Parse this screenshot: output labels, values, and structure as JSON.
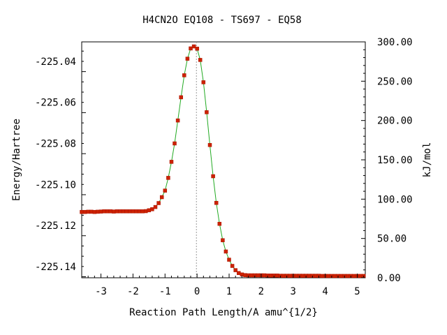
{
  "chart_data": {
    "type": "line",
    "title": "H4CN2O   EQ108 - TS697 - EQ58",
    "xlabel": "Reaction Path Length/A amu^{1/2}",
    "ylabel": "Energy/Hartree",
    "y2label": "kJ/mol",
    "xlim": [
      -3.6,
      5.25
    ],
    "ylim": [
      -225.1455,
      -225.0305
    ],
    "y2lim": [
      0,
      300
    ],
    "x_ticks": [
      "-3",
      "-2",
      "-1",
      "0",
      "1",
      "2",
      "3",
      "4",
      "5"
    ],
    "y_ticks": [
      "-225.04",
      "-225.06",
      "-225.08",
      "-225.10",
      "-225.12",
      "-225.14"
    ],
    "y2_ticks": [
      "0.00",
      "50.00",
      "100.00",
      "150.00",
      "200.00",
      "250.00",
      "300.00"
    ],
    "grid": false,
    "ts_line_x": -0.02,
    "colors": {
      "curve": "#22aa22",
      "points": "#cc2200",
      "ts_line": "#999999",
      "axes": "#000000"
    },
    "series": [
      {
        "x": [
          -3.6,
          -3.5,
          -3.4,
          -3.3,
          -3.2,
          -3.1,
          -3.0,
          -2.9,
          -2.8,
          -2.7,
          -2.6,
          -2.5,
          -2.4,
          -2.3,
          -2.2,
          -2.1,
          -2.0,
          -1.9,
          -1.8,
          -1.7,
          -1.6,
          -1.5,
          -1.4,
          -1.3,
          -1.2,
          -1.1,
          -1.0,
          -0.9,
          -0.8,
          -0.7,
          -0.6,
          -0.5,
          -0.4,
          -0.3,
          -0.2,
          -0.1,
          0.0,
          0.1,
          0.2,
          0.3,
          0.4,
          0.5,
          0.6,
          0.7,
          0.8,
          0.9,
          1.0,
          1.1,
          1.2,
          1.3,
          1.4,
          1.5,
          1.6,
          1.7,
          1.8,
          1.9,
          2.0,
          2.1,
          2.2,
          2.3,
          2.4,
          2.5,
          2.6,
          2.7,
          2.8,
          2.9,
          3.0,
          3.1,
          3.2,
          3.3,
          3.4,
          3.5,
          3.6,
          3.7,
          3.8,
          3.9,
          4.0,
          4.1,
          4.2,
          4.3,
          4.4,
          4.5,
          4.6,
          4.7,
          4.8,
          4.9,
          5.0,
          5.1,
          5.2
        ],
        "y": [
          -225.1134,
          -225.1134,
          -225.1133,
          -225.1133,
          -225.1134,
          -225.1133,
          -225.1132,
          -225.1131,
          -225.1131,
          -225.1131,
          -225.1132,
          -225.1131,
          -225.1131,
          -225.1131,
          -225.1131,
          -225.1131,
          -225.1131,
          -225.1131,
          -225.1131,
          -225.1131,
          -225.113,
          -225.1126,
          -225.1121,
          -225.111,
          -225.1091,
          -225.1062,
          -225.103,
          -225.0968,
          -225.089,
          -225.08,
          -225.0688,
          -225.0575,
          -225.0468,
          -225.0387,
          -225.0337,
          -225.0327,
          -225.0338,
          -225.0393,
          -225.0502,
          -225.0648,
          -225.0808,
          -225.096,
          -225.109,
          -225.1192,
          -225.1272,
          -225.1327,
          -225.1367,
          -225.1397,
          -225.1418,
          -225.1432,
          -225.1439,
          -225.1442,
          -225.1443,
          -225.1443,
          -225.1443,
          -225.1443,
          -225.1443,
          -225.1443,
          -225.1444,
          -225.1444,
          -225.1444,
          -225.1444,
          -225.1445,
          -225.1445,
          -225.1445,
          -225.1445,
          -225.1445,
          -225.1445,
          -225.1445,
          -225.1445,
          -225.1445,
          -225.1445,
          -225.1445,
          -225.1445,
          -225.1445,
          -225.1446,
          -225.1446,
          -225.1446,
          -225.1446,
          -225.1446,
          -225.1446,
          -225.1446,
          -225.1446,
          -225.1446,
          -225.1446,
          -225.1446,
          -225.1446,
          -225.1446,
          -225.1446
        ]
      }
    ]
  }
}
